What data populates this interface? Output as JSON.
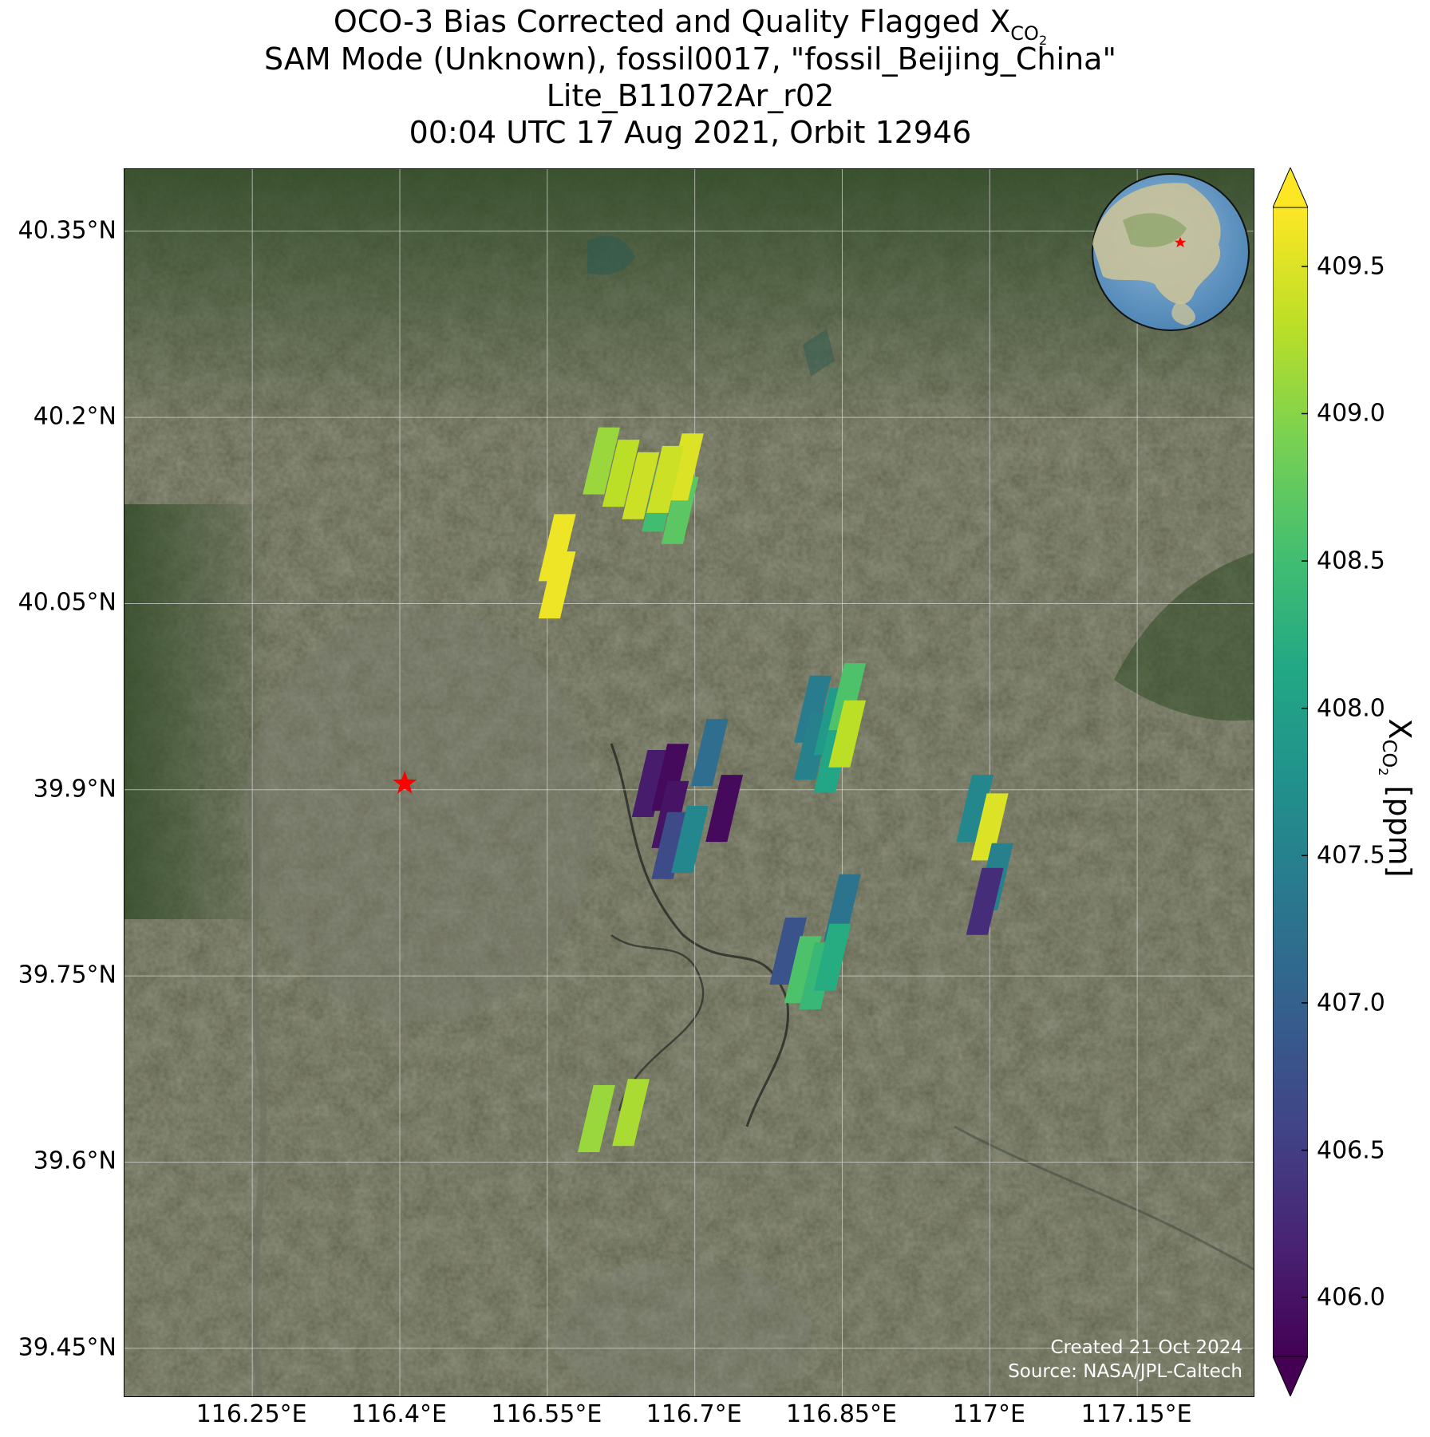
{
  "title": {
    "line1_text": "OCO-3 Bias Corrected and Quality Flagged X",
    "line1_sub": "CO",
    "line1_subsub": "2",
    "line2": "SAM Mode (Unknown), fossil0017, \"fossil_Beijing_China\"",
    "line3": "Lite_B11072Ar_r02",
    "line4": "00:04 UTC 17 Aug 2021, Orbit 12946"
  },
  "map": {
    "extent": {
      "lon": [
        116.12,
        117.27
      ],
      "lat": [
        39.41,
        40.4
      ]
    },
    "lat_ticks": [
      {
        "value": 40.35,
        "label": "40.35°N"
      },
      {
        "value": 40.2,
        "label": "40.2°N"
      },
      {
        "value": 40.05,
        "label": "40.05°N"
      },
      {
        "value": 39.9,
        "label": "39.9°N"
      },
      {
        "value": 39.75,
        "label": "39.75°N"
      },
      {
        "value": 39.6,
        "label": "39.6°N"
      },
      {
        "value": 39.45,
        "label": "39.45°N"
      }
    ],
    "lon_ticks": [
      {
        "value": 116.25,
        "label": "116.25°E"
      },
      {
        "value": 116.4,
        "label": "116.4°E"
      },
      {
        "value": 116.55,
        "label": "116.55°E"
      },
      {
        "value": 116.7,
        "label": "116.7°E"
      },
      {
        "value": 116.85,
        "label": "116.85°E"
      },
      {
        "value": 117.0,
        "label": "117°E"
      },
      {
        "value": 117.15,
        "label": "117.15°E"
      }
    ],
    "target_marker": {
      "lon": 116.405,
      "lat": 39.905,
      "color": "#ff0000",
      "icon": "star"
    },
    "basemap": "satellite-imagery",
    "inset": {
      "icon": "globe",
      "marker_color": "#ff0000"
    },
    "credit_line1": "Created 21 Oct 2024",
    "credit_line2": "Source: NASA/JPL-Caltech"
  },
  "colorbar": {
    "min": 405.8,
    "max": 409.7,
    "extend": "both",
    "colormap": "viridis",
    "ticks": [
      {
        "value": 406.0,
        "label": "406.0"
      },
      {
        "value": 406.5,
        "label": "406.5"
      },
      {
        "value": 407.0,
        "label": "407.0"
      },
      {
        "value": 407.5,
        "label": "407.5"
      },
      {
        "value": 408.0,
        "label": "408.0"
      },
      {
        "value": 408.5,
        "label": "408.5"
      },
      {
        "value": 409.0,
        "label": "409.0"
      },
      {
        "value": 409.5,
        "label": "409.5"
      }
    ],
    "label_text": "X",
    "label_sub": "CO",
    "label_subsub": "2",
    "label_units": " [ppm]"
  },
  "soundings": [
    {
      "lon": 116.605,
      "lat": 40.165,
      "xco2": 409.1
    },
    {
      "lon": 116.625,
      "lat": 40.155,
      "xco2": 409.3
    },
    {
      "lon": 116.645,
      "lat": 40.145,
      "xco2": 409.4
    },
    {
      "lon": 116.665,
      "lat": 40.135,
      "xco2": 408.5
    },
    {
      "lon": 116.685,
      "lat": 40.125,
      "xco2": 408.7
    },
    {
      "lon": 116.69,
      "lat": 40.16,
      "xco2": 409.5
    },
    {
      "lon": 116.67,
      "lat": 40.15,
      "xco2": 409.4
    },
    {
      "lon": 116.56,
      "lat": 40.095,
      "xco2": 409.6
    },
    {
      "lon": 116.56,
      "lat": 40.065,
      "xco2": 409.6
    },
    {
      "lon": 116.82,
      "lat": 39.965,
      "xco2": 407.4
    },
    {
      "lon": 116.82,
      "lat": 39.935,
      "xco2": 407.5
    },
    {
      "lon": 116.84,
      "lat": 39.955,
      "xco2": 407.9
    },
    {
      "lon": 116.84,
      "lat": 39.925,
      "xco2": 408.1
    },
    {
      "lon": 116.855,
      "lat": 39.975,
      "xco2": 408.6
    },
    {
      "lon": 116.855,
      "lat": 39.945,
      "xco2": 409.3
    },
    {
      "lon": 116.715,
      "lat": 39.93,
      "xco2": 407.2
    },
    {
      "lon": 116.655,
      "lat": 39.905,
      "xco2": 406.1
    },
    {
      "lon": 116.675,
      "lat": 39.91,
      "xco2": 405.9
    },
    {
      "lon": 116.675,
      "lat": 39.88,
      "xco2": 406.0
    },
    {
      "lon": 116.675,
      "lat": 39.855,
      "xco2": 406.7
    },
    {
      "lon": 116.695,
      "lat": 39.86,
      "xco2": 407.6
    },
    {
      "lon": 116.73,
      "lat": 39.885,
      "xco2": 405.9
    },
    {
      "lon": 116.985,
      "lat": 39.885,
      "xco2": 407.6
    },
    {
      "lon": 117.0,
      "lat": 39.87,
      "xco2": 409.5
    },
    {
      "lon": 117.005,
      "lat": 39.83,
      "xco2": 407.5
    },
    {
      "lon": 116.995,
      "lat": 39.81,
      "xco2": 406.3
    },
    {
      "lon": 116.85,
      "lat": 39.805,
      "xco2": 407.3
    },
    {
      "lon": 116.795,
      "lat": 39.77,
      "xco2": 406.8
    },
    {
      "lon": 116.81,
      "lat": 39.755,
      "xco2": 408.6
    },
    {
      "lon": 116.825,
      "lat": 39.75,
      "xco2": 408.4
    },
    {
      "lon": 116.84,
      "lat": 39.765,
      "xco2": 408.2
    },
    {
      "lon": 116.6,
      "lat": 39.635,
      "xco2": 409.1
    },
    {
      "lon": 116.635,
      "lat": 39.64,
      "xco2": 409.2
    }
  ]
}
